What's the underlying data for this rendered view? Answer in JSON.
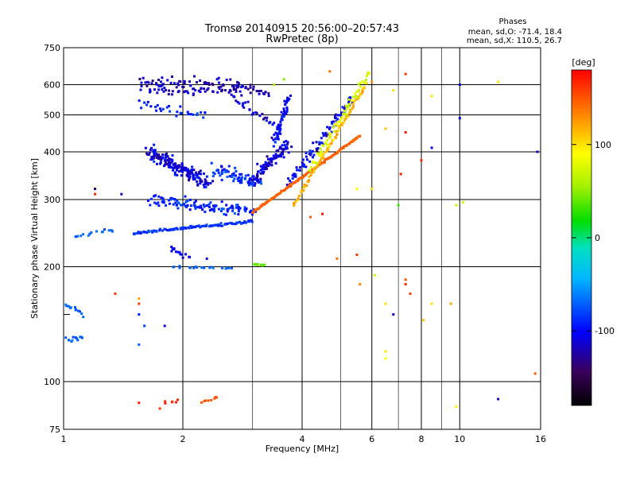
{
  "chart_data": {
    "type": "scatter",
    "title": "Tromsø 20140915 20:56:00–20:57:43",
    "subtitle": "RwPretec (8p)",
    "xlabel": "Frequency [MHz]",
    "ylabel": "Stationary phase Virtual Height [km]",
    "x_scale": "log",
    "y_scale": "log",
    "xlim": [
      1,
      16
    ],
    "ylim": [
      75,
      750
    ],
    "x_ticks": [
      1,
      2,
      4,
      6,
      8,
      10,
      16
    ],
    "x_minor": [
      3,
      5,
      7,
      9
    ],
    "y_ticks": [
      75,
      100,
      200,
      300,
      400,
      500,
      600,
      750
    ],
    "y_minor": [
      150
    ],
    "grid": true,
    "stats": {
      "heading": "Phases",
      "line_o": "mean, sd,O: -71.4, 18.4",
      "line_x": "mean, sd,X: 110.5, 26.7"
    },
    "colorbar": {
      "label": "[deg]",
      "range": [
        -180,
        180
      ],
      "ticks": [
        100,
        0,
        -100
      ]
    },
    "traces": [
      {
        "x0": 1.55,
        "x1": 2.75,
        "y0": 610,
        "y1": 605,
        "n": 60,
        "jf": 0.04,
        "jh": 0.05,
        "phase": -120,
        "ps": 30
      },
      {
        "x0": 1.6,
        "x1": 2.8,
        "y0": 580,
        "y1": 578,
        "n": 50,
        "jf": 0.04,
        "jh": 0.04,
        "phase": -115,
        "ps": 30
      },
      {
        "x0": 2.7,
        "x1": 3.3,
        "y0": 600,
        "y1": 560,
        "n": 25,
        "jf": 0.02,
        "jh": 0.03,
        "phase": -120,
        "ps": 25
      },
      {
        "x0": 2.65,
        "x1": 3.5,
        "y0": 560,
        "y1": 460,
        "n": 30,
        "jf": 0.02,
        "jh": 0.04,
        "phase": -110,
        "ps": 30
      },
      {
        "x0": 1.55,
        "x1": 2.3,
        "y0": 530,
        "y1": 500,
        "n": 30,
        "jf": 0.03,
        "jh": 0.04,
        "phase": -90,
        "ps": 25
      },
      {
        "x0": 1.65,
        "x1": 2.3,
        "y0": 400,
        "y1": 330,
        "n": 180,
        "jf": 0.05,
        "jh": 0.06,
        "phase": -110,
        "ps": 35
      },
      {
        "x0": 1.65,
        "x1": 3.0,
        "y0": 300,
        "y1": 280,
        "n": 120,
        "jf": 0.06,
        "jh": 0.05,
        "phase": -90,
        "ps": 30
      },
      {
        "x0": 1.5,
        "x1": 3.0,
        "y0": 245,
        "y1": 263,
        "n": 100,
        "jf": 0.01,
        "jh": 0.01,
        "phase": -85,
        "ps": 15
      },
      {
        "x0": 2.4,
        "x1": 3.1,
        "y0": 360,
        "y1": 330,
        "n": 70,
        "jf": 0.04,
        "jh": 0.06,
        "phase": -85,
        "ps": 30
      },
      {
        "x0": 3.0,
        "x1": 3.7,
        "y0": 340,
        "y1": 420,
        "n": 90,
        "jf": 0.04,
        "jh": 0.06,
        "phase": -110,
        "ps": 30
      },
      {
        "x0": 3.4,
        "x1": 3.7,
        "y0": 420,
        "y1": 560,
        "n": 60,
        "jf": 0.02,
        "jh": 0.05,
        "phase": -100,
        "ps": 30
      },
      {
        "x0": 3.7,
        "x1": 5.4,
        "y0": 330,
        "y1": 560,
        "n": 90,
        "jf": 0.03,
        "jh": 0.04,
        "phase": -105,
        "ps": 35
      },
      {
        "x0": 3.0,
        "x1": 5.6,
        "y0": 278,
        "y1": 440,
        "n": 140,
        "jf": 0.005,
        "jh": 0.008,
        "phase": 145,
        "ps": 12
      },
      {
        "x0": 3.8,
        "x1": 5.8,
        "y0": 290,
        "y1": 600,
        "n": 90,
        "jf": 0.01,
        "jh": 0.02,
        "phase": 115,
        "ps": 20
      },
      {
        "x0": 4.2,
        "x1": 5.9,
        "y0": 360,
        "y1": 650,
        "n": 70,
        "jf": 0.02,
        "jh": 0.03,
        "phase": 75,
        "ps": 20
      },
      {
        "x0": 1.05,
        "x1": 1.35,
        "y0": 240,
        "y1": 250,
        "n": 15,
        "jf": 0.04,
        "jh": 0.02,
        "phase": -70,
        "ps": 15
      },
      {
        "x0": 1.0,
        "x1": 1.12,
        "y0": 160,
        "y1": 150,
        "n": 14,
        "jf": 0.02,
        "jh": 0.03,
        "phase": -70,
        "ps": 15
      },
      {
        "x0": 1.0,
        "x1": 1.12,
        "y0": 128,
        "y1": 130,
        "n": 14,
        "jf": 0.02,
        "jh": 0.02,
        "phase": -70,
        "ps": 15
      },
      {
        "x0": 1.9,
        "x1": 2.7,
        "y0": 200,
        "y1": 198,
        "n": 20,
        "jf": 0.03,
        "jh": 0.01,
        "phase": -70,
        "ps": 15
      },
      {
        "x0": 1.85,
        "x1": 2.05,
        "y0": 225,
        "y1": 210,
        "n": 15,
        "jf": 0.03,
        "jh": 0.03,
        "phase": -105,
        "ps": 15
      },
      {
        "x0": 3.0,
        "x1": 3.2,
        "y0": 203,
        "y1": 202,
        "n": 12,
        "jf": 0.02,
        "jh": 0.01,
        "phase": 40,
        "ps": 15
      },
      {
        "x0": 1.8,
        "x1": 1.95,
        "y0": 88,
        "y1": 89,
        "n": 6,
        "jf": 0.02,
        "jh": 0.01,
        "phase": 165,
        "ps": 10
      },
      {
        "x0": 2.25,
        "x1": 2.45,
        "y0": 88,
        "y1": 91,
        "n": 8,
        "jf": 0.02,
        "jh": 0.02,
        "phase": 150,
        "ps": 10
      }
    ],
    "points": [
      [
        6.0,
        610,
        130
      ],
      [
        6.5,
        460,
        110
      ],
      [
        7.3,
        640,
        160
      ],
      [
        7.3,
        450,
        170
      ],
      [
        8.0,
        380,
        165
      ],
      [
        8.5,
        560,
        100
      ],
      [
        8.5,
        410,
        -110
      ],
      [
        10.0,
        600,
        -110
      ],
      [
        10.0,
        490,
        -110
      ],
      [
        12.5,
        610,
        100
      ],
      [
        15.7,
        400,
        -120
      ],
      [
        7.0,
        290,
        30
      ],
      [
        9.8,
        290,
        70
      ],
      [
        10.2,
        295,
        75
      ],
      [
        7.1,
        350,
        170
      ],
      [
        4.5,
        275,
        175
      ],
      [
        5.5,
        320,
        90
      ],
      [
        1.2,
        320,
        -140
      ],
      [
        1.2,
        310,
        165
      ],
      [
        1.4,
        310,
        -120
      ],
      [
        1.35,
        170,
        160
      ],
      [
        1.55,
        160,
        160
      ],
      [
        1.55,
        165,
        120
      ],
      [
        1.55,
        125,
        -70
      ],
      [
        1.6,
        140,
        -80
      ],
      [
        1.55,
        150,
        -90
      ],
      [
        1.55,
        88,
        170
      ],
      [
        1.75,
        85,
        160
      ],
      [
        1.8,
        140,
        -110
      ],
      [
        2.3,
        210,
        -110
      ],
      [
        4.2,
        270,
        150
      ],
      [
        4.9,
        210,
        140
      ],
      [
        5.6,
        180,
        130
      ],
      [
        6.5,
        160,
        100
      ],
      [
        6.8,
        150,
        -120
      ],
      [
        6.5,
        120,
        100
      ],
      [
        6.5,
        115,
        90
      ],
      [
        7.3,
        180,
        165
      ],
      [
        7.3,
        185,
        150
      ],
      [
        7.5,
        170,
        160
      ],
      [
        8.5,
        160,
        100
      ],
      [
        8.1,
        145,
        110
      ],
      [
        9.5,
        160,
        120
      ],
      [
        9.8,
        86,
        90
      ],
      [
        12.5,
        90,
        -120
      ],
      [
        15.5,
        105,
        150
      ],
      [
        6.1,
        190,
        70
      ],
      [
        6.0,
        320,
        100
      ],
      [
        6.8,
        580,
        100
      ],
      [
        5.5,
        215,
        160
      ],
      [
        3.4,
        600,
        60
      ],
      [
        3.6,
        620,
        50
      ],
      [
        4.7,
        650,
        140
      ]
    ]
  }
}
